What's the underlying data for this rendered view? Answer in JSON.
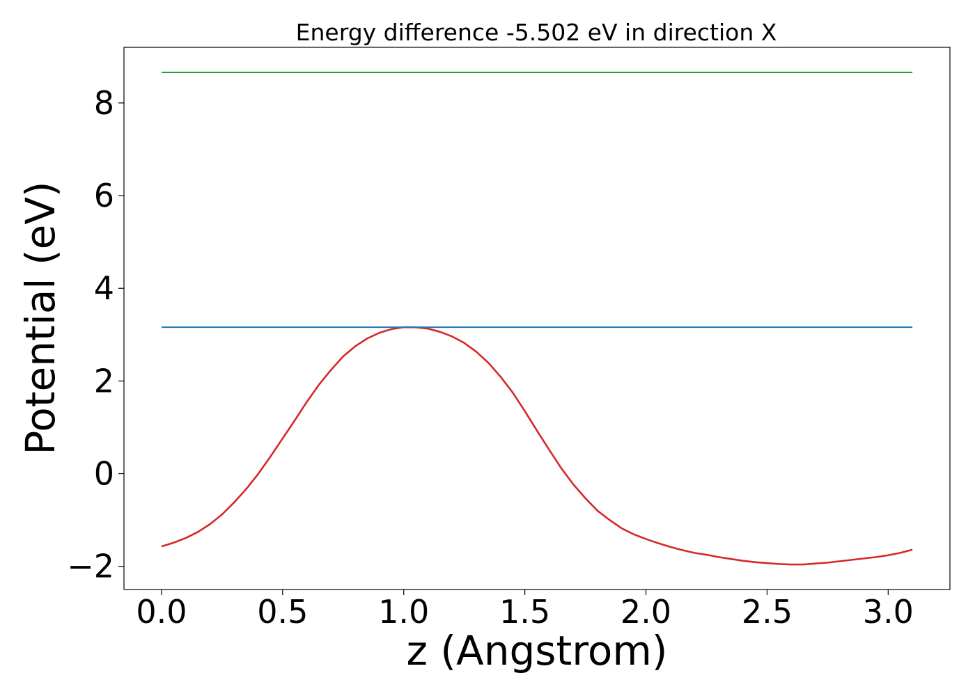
{
  "chart_data": {
    "type": "line",
    "title": "Energy difference -5.502 eV in direction X",
    "xlabel": "z (Angstrom)",
    "ylabel": "Potential (eV)",
    "xlim": [
      -0.155,
      3.255
    ],
    "ylim": [
      -2.5,
      9.2
    ],
    "xticks": [
      0.0,
      0.5,
      1.0,
      1.5,
      2.0,
      2.5,
      3.0
    ],
    "xtick_labels": [
      "0.0",
      "0.5",
      "1.0",
      "1.5",
      "2.0",
      "2.5",
      "3.0"
    ],
    "yticks": [
      -2,
      0,
      2,
      4,
      6,
      8
    ],
    "ytick_labels": [
      "−2",
      "0",
      "2",
      "4",
      "6",
      "8"
    ],
    "grid": false,
    "series": [
      {
        "color": "#d62728",
        "x": [
          0.0,
          0.05,
          0.1,
          0.15,
          0.2,
          0.25,
          0.3,
          0.35,
          0.4,
          0.45,
          0.5,
          0.55,
          0.6,
          0.65,
          0.7,
          0.75,
          0.8,
          0.85,
          0.9,
          0.95,
          1.0,
          1.05,
          1.1,
          1.15,
          1.2,
          1.25,
          1.3,
          1.35,
          1.4,
          1.45,
          1.5,
          1.55,
          1.6,
          1.65,
          1.7,
          1.75,
          1.8,
          1.85,
          1.9,
          1.95,
          2.0,
          2.05,
          2.1,
          2.15,
          2.2,
          2.25,
          2.3,
          2.35,
          2.4,
          2.45,
          2.5,
          2.55,
          2.6,
          2.65,
          2.7,
          2.75,
          2.8,
          2.85,
          2.9,
          2.95,
          3.0,
          3.05,
          3.1
        ],
        "y": [
          -1.57,
          -1.49,
          -1.39,
          -1.26,
          -1.09,
          -0.88,
          -0.62,
          -0.33,
          0.0,
          0.37,
          0.76,
          1.15,
          1.55,
          1.92,
          2.24,
          2.53,
          2.75,
          2.92,
          3.04,
          3.12,
          3.16,
          3.16,
          3.13,
          3.06,
          2.96,
          2.82,
          2.63,
          2.39,
          2.09,
          1.75,
          1.35,
          0.93,
          0.52,
          0.12,
          -0.23,
          -0.53,
          -0.8,
          -1.0,
          -1.18,
          -1.31,
          -1.41,
          -1.5,
          -1.58,
          -1.65,
          -1.71,
          -1.75,
          -1.8,
          -1.84,
          -1.88,
          -1.91,
          -1.93,
          -1.95,
          -1.96,
          -1.96,
          -1.94,
          -1.92,
          -1.89,
          -1.86,
          -1.83,
          -1.8,
          -1.76,
          -1.71,
          -1.64
        ]
      },
      {
        "color": "#1f77b4",
        "x": [
          0.0,
          3.1
        ],
        "y": [
          3.16,
          3.16
        ]
      },
      {
        "color": "#2ca02c",
        "x": [
          0.0,
          3.1
        ],
        "y": [
          8.66,
          8.66
        ]
      }
    ]
  }
}
